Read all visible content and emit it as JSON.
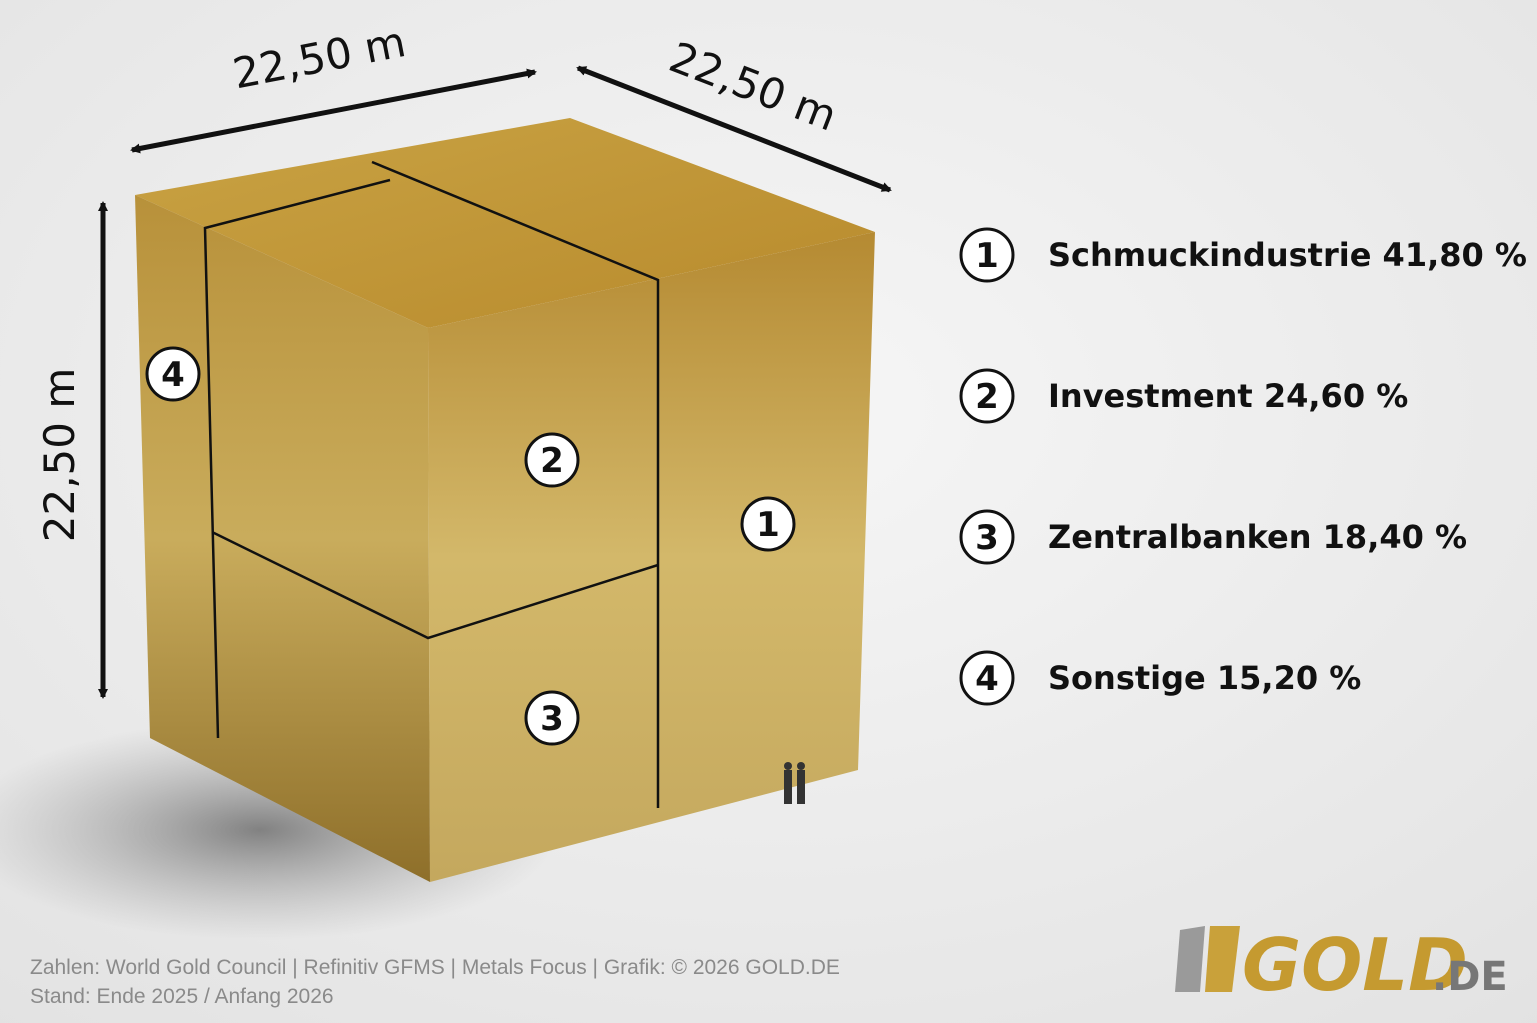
{
  "dimensions": {
    "width": "22,50 m",
    "depth": "22,50 m",
    "height": "22,50 m"
  },
  "legend": [
    {
      "number": "1",
      "label": "Schmuckindustrie 41,80 %"
    },
    {
      "number": "2",
      "label": "Investment 24,60 %"
    },
    {
      "number": "3",
      "label": "Zentralbanken 18,40 %"
    },
    {
      "number": "4",
      "label": "Sonstige 15,20 %"
    }
  ],
  "footer": {
    "sources": "Zahlen: World Gold Council | Refinitiv GFMS | Metals Focus | Grafik: © 2026 GOLD.DE",
    "date": "Stand: Ende 2025 / Anfang 2026"
  },
  "logo": {
    "main": "GOLD",
    "suffix": ".DE"
  }
}
